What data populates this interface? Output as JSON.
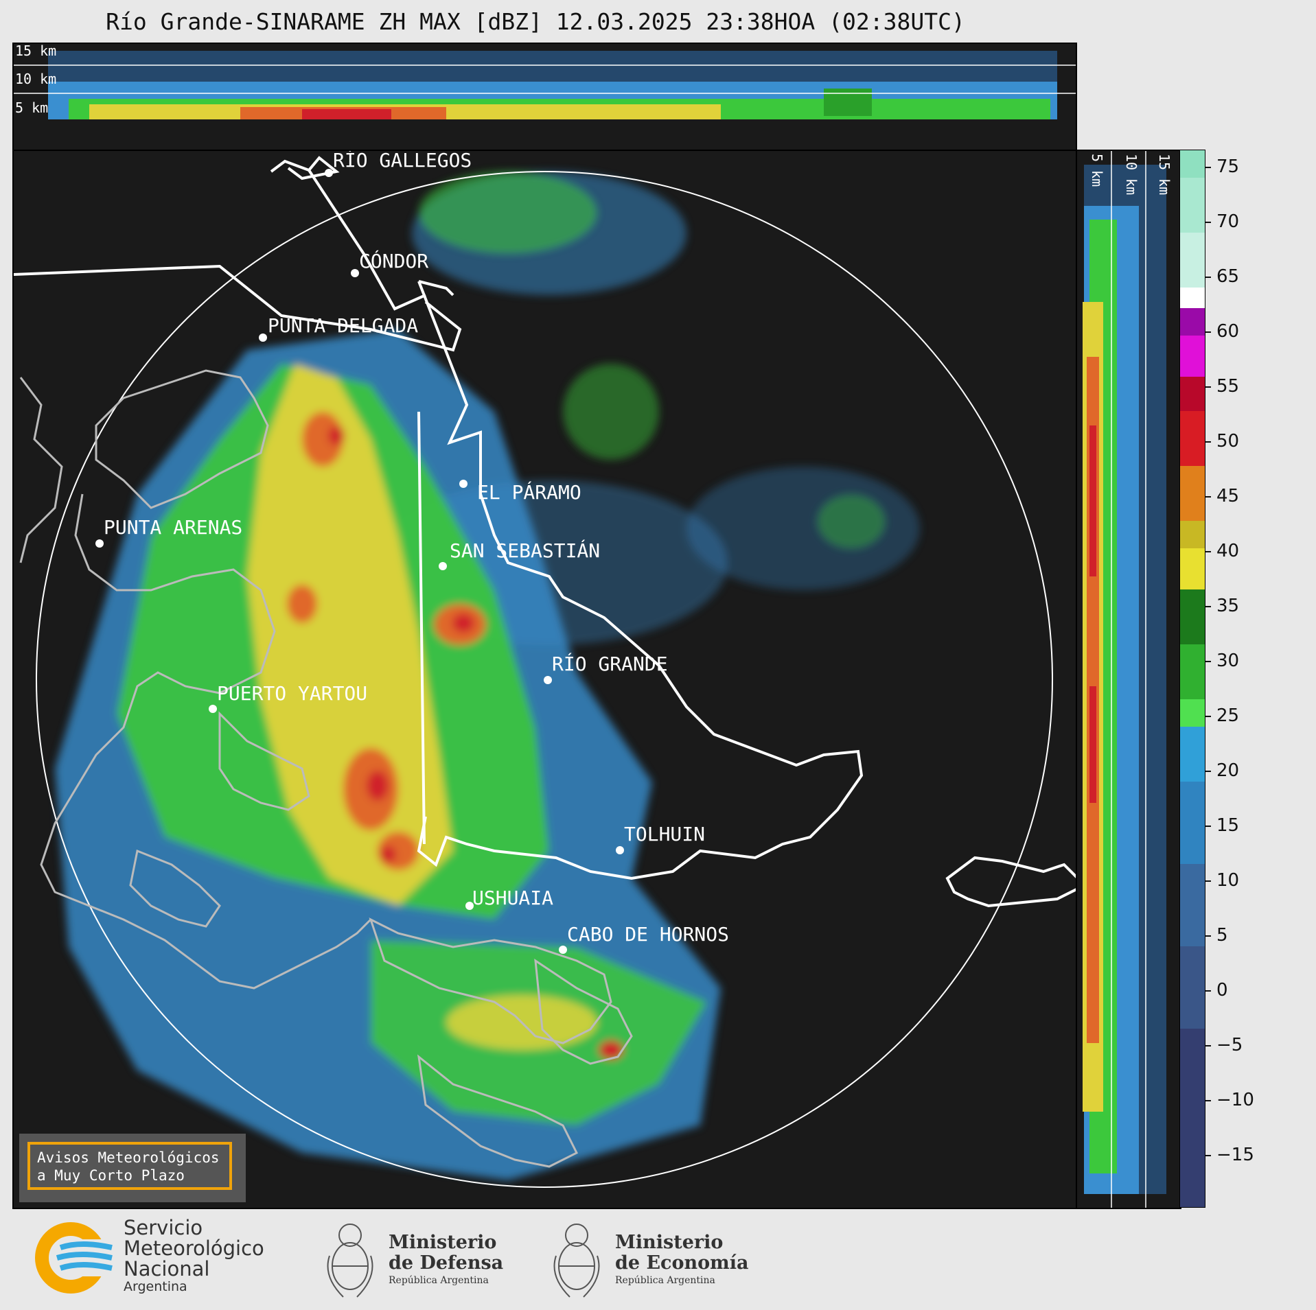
{
  "title": "Río Grande-SINARAME ZH MAX [dBZ] 12.03.2025 23:38HOA (02:38UTC)",
  "top_panel": {
    "labels": [
      "15 km",
      "10 km",
      "5 km"
    ]
  },
  "right_panel": {
    "labels": [
      "5 km",
      "10 km",
      "15 km"
    ]
  },
  "cities": [
    {
      "name": "RÍO GALLEGOS"
    },
    {
      "name": "CÓNDOR"
    },
    {
      "name": "PUNTA DELGADA"
    },
    {
      "name": "EL PÁRAMO"
    },
    {
      "name": "PUNTA ARENAS"
    },
    {
      "name": "SAN SEBASTIÁN"
    },
    {
      "name": "RÍO GRANDE"
    },
    {
      "name": "PUERTO YARTOU"
    },
    {
      "name": "TOLHUIN"
    },
    {
      "name": "USHUAIA"
    },
    {
      "name": "CABO DE HORNOS"
    }
  ],
  "colorbar": {
    "unit": "dBZ",
    "ticks": [
      "75",
      "70",
      "65",
      "60",
      "55",
      "50",
      "45",
      "40",
      "35",
      "30",
      "25",
      "20",
      "15",
      "10",
      "5",
      "0",
      "−5",
      "−10",
      "−15"
    ],
    "range": [
      -20,
      77
    ]
  },
  "warning_box": {
    "line1": "Avisos Meteorológicos",
    "line2": "a Muy Corto Plazo"
  },
  "footer": {
    "smn": {
      "line1": "Servicio",
      "line2": "Meteorológico",
      "line3": "Nacional",
      "line4": "Argentina"
    },
    "defensa": {
      "line1": "Ministerio",
      "line2": "de Defensa",
      "line3": "República Argentina"
    },
    "economia": {
      "line1": "Ministerio",
      "line2": "de Economía",
      "line3": "República Argentina"
    }
  },
  "colors": {
    "background": "#1a1a1a",
    "blue_echo": "#3a8fd0",
    "green_echo": "#3cc83c",
    "yellow_echo": "#e0d23a",
    "red_echo": "#d0202a",
    "accent_box": "#f0a30a"
  }
}
